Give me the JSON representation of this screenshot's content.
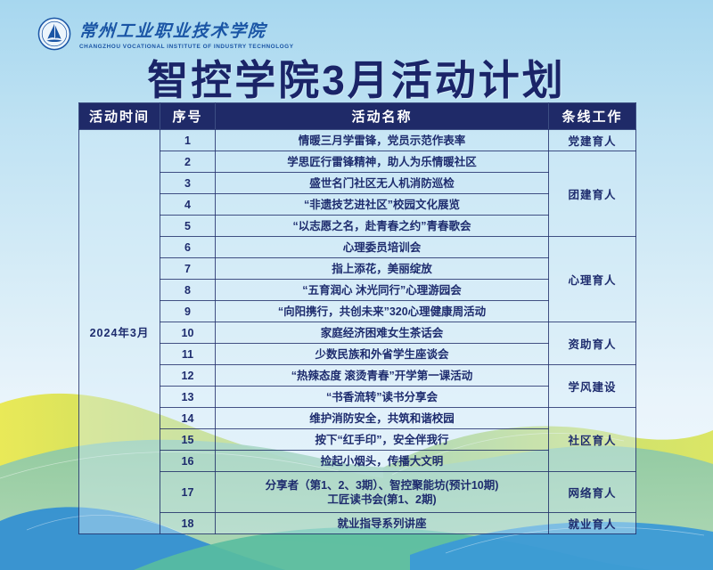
{
  "logo": {
    "cn_name": "常州工业职业技术学院",
    "en_name": "CHANGZHOU VOCATIONAL INSTITUTE OF INDUSTRY TECHNOLOGY"
  },
  "title": "智控学院3月活动计划",
  "table": {
    "headers": [
      "活动时间",
      "序号",
      "活动名称",
      "条线工作"
    ],
    "time_label": "2024年3月",
    "rows": [
      {
        "no": "1",
        "name": "情暖三月学雷锋，党员示范作表率"
      },
      {
        "no": "2",
        "name": "学思匠行雷锋精神，助人为乐情暖社区"
      },
      {
        "no": "3",
        "name": "盛世名门社区无人机消防巡检"
      },
      {
        "no": "4",
        "name": "“非遗技艺进社区”校园文化展览"
      },
      {
        "no": "5",
        "name": "“以志愿之名，赴青春之约”青春歌会"
      },
      {
        "no": "6",
        "name": "心理委员培训会"
      },
      {
        "no": "7",
        "name": "指上添花，美丽绽放"
      },
      {
        "no": "8",
        "name": "“五育润心 沐光同行”心理游园会"
      },
      {
        "no": "9",
        "name": "“向阳携行，共创未来”320心理健康周活动"
      },
      {
        "no": "10",
        "name": "家庭经济困难女生茶话会"
      },
      {
        "no": "11",
        "name": "少数民族和外省学生座谈会"
      },
      {
        "no": "12",
        "name": "“热辣态度 滚烫青春”开学第一课活动"
      },
      {
        "no": "13",
        "name": "“书香流转”读书分享会"
      },
      {
        "no": "14",
        "name": "维护消防安全，共筑和谐校园"
      },
      {
        "no": "15",
        "name": "按下“红手印”，安全伴我行"
      },
      {
        "no": "16",
        "name": "捡起小烟头，传播大文明"
      },
      {
        "no": "17",
        "name": "分享者（第1、2、3期）、智控聚能坊(预计10期)",
        "name2": "工匠读书会(第1、2期)"
      },
      {
        "no": "18",
        "name": "就业指导系列讲座"
      }
    ],
    "categories": [
      {
        "label": "党建育人",
        "span": 1
      },
      {
        "label": "团建育人",
        "span": 4
      },
      {
        "label": "心理育人",
        "span": 4
      },
      {
        "label": "资助育人",
        "span": 2
      },
      {
        "label": "学风建设",
        "span": 2
      },
      {
        "label": "社区育人",
        "span": 3
      },
      {
        "label": "网络育人",
        "span": 1
      },
      {
        "label": "就业育人",
        "span": 1
      }
    ]
  },
  "colors": {
    "title_navy": "#1a2468",
    "header_bg": "#1f2a68",
    "cell_text": "#1e2c6e",
    "logo_blue": "#1a55a5",
    "bg_top": "#a7d7ef",
    "wave_yellow": "#e5e64d",
    "wave_green": "#86c5a5",
    "wave_teal": "#59bd9e",
    "wave_blue": "#3490d2"
  }
}
